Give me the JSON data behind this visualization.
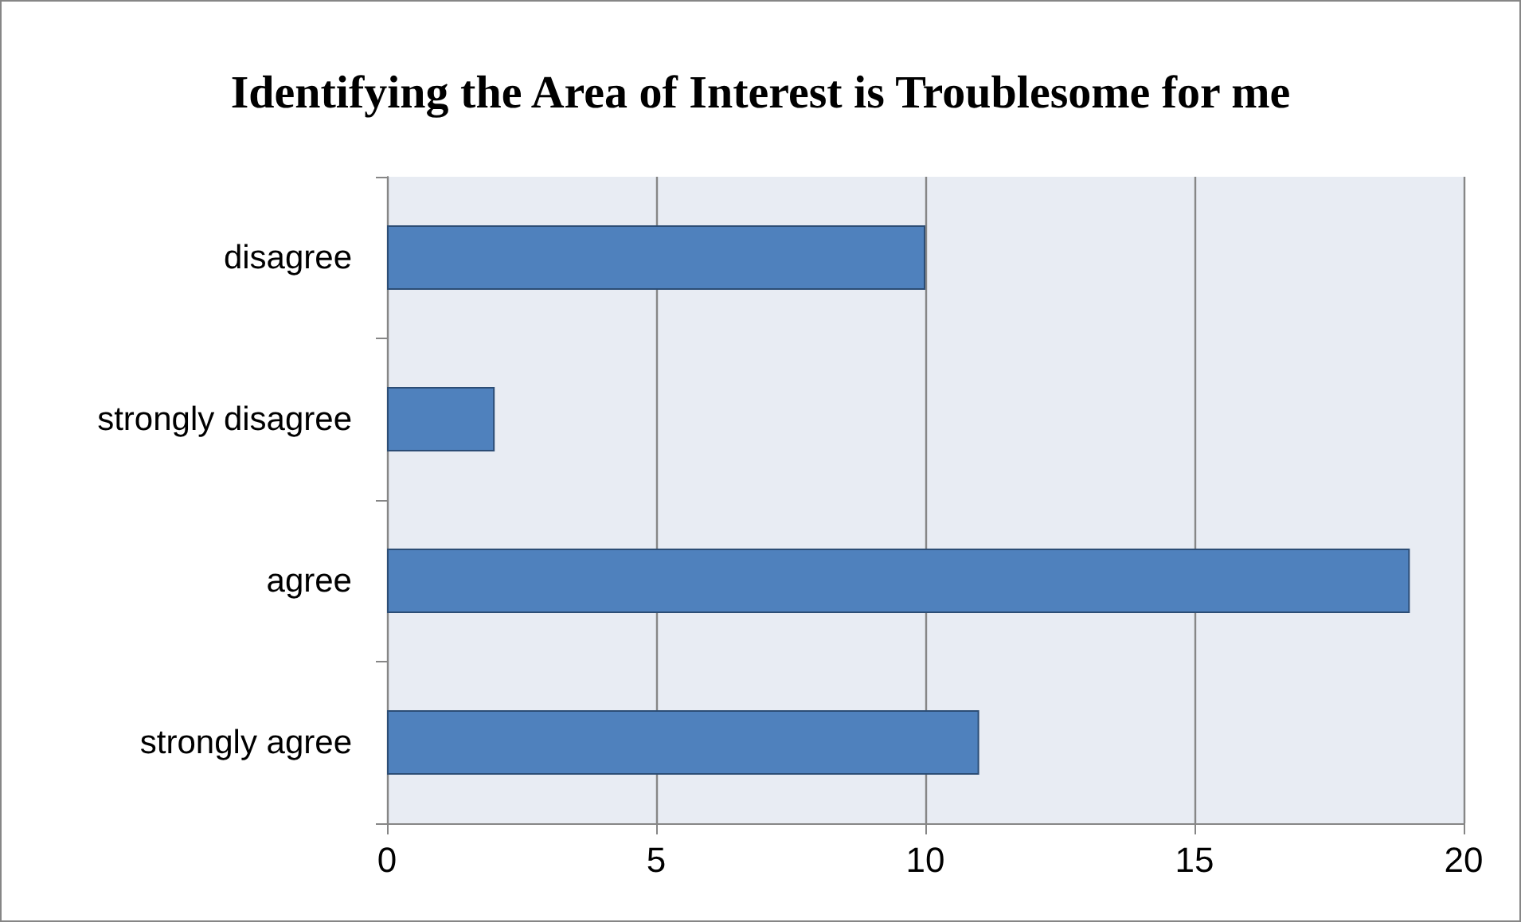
{
  "chart_data": {
    "type": "bar",
    "orientation": "horizontal",
    "title": "Identifying the Area of Interest is Troublesome for me",
    "categories": [
      "disagree",
      "strongly disagree",
      "agree",
      "strongly agree"
    ],
    "values": [
      10,
      2,
      19,
      11
    ],
    "color": "#4f81bd",
    "xlim": [
      0,
      20
    ],
    "xticks": [
      0,
      5,
      10,
      15,
      20
    ],
    "grid": "x"
  }
}
